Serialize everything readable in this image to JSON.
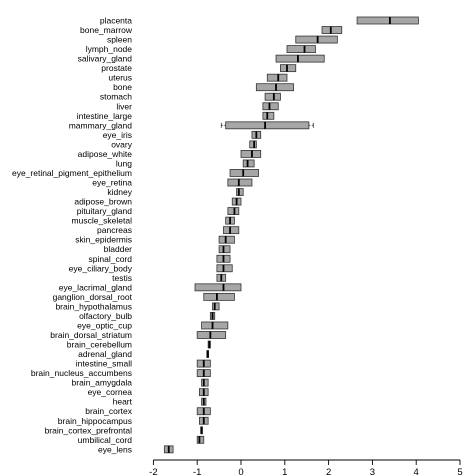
{
  "chart_data": {
    "type": "boxplot",
    "title": "",
    "xlabel": "",
    "ylabel": "",
    "xlim": [
      -2.1,
      5.0
    ],
    "xticks": [
      "-2",
      "-1",
      "0",
      "1",
      "2",
      "3",
      "4",
      "5"
    ],
    "grid": false,
    "legend": "none",
    "colors": {
      "box_fill": "#a6a6a6",
      "box_stroke": "#333333",
      "median": "#000000",
      "axis": "#000000"
    },
    "categories": [
      {
        "label": "placenta",
        "q1": 2.65,
        "median": 3.4,
        "q3": 4.05
      },
      {
        "label": "bone_marrow",
        "q1": 1.85,
        "median": 2.05,
        "q3": 2.3
      },
      {
        "label": "spleen",
        "q1": 1.25,
        "median": 1.75,
        "q3": 2.2
      },
      {
        "label": "lymph_node",
        "q1": 1.05,
        "median": 1.45,
        "q3": 1.7
      },
      {
        "label": "salivary_gland",
        "q1": 0.8,
        "median": 1.3,
        "q3": 1.9
      },
      {
        "label": "prostate",
        "q1": 0.9,
        "median": 1.05,
        "q3": 1.25
      },
      {
        "label": "uterus",
        "q1": 0.6,
        "median": 0.85,
        "q3": 1.05
      },
      {
        "label": "bone",
        "q1": 0.35,
        "median": 0.8,
        "q3": 1.2
      },
      {
        "label": "stomach",
        "q1": 0.55,
        "median": 0.75,
        "q3": 0.9
      },
      {
        "label": "liver",
        "q1": 0.5,
        "median": 0.65,
        "q3": 0.85
      },
      {
        "label": "intestine_large",
        "q1": 0.5,
        "median": 0.6,
        "q3": 0.75
      },
      {
        "label": "mammary_gland",
        "q1": -0.35,
        "median": 0.55,
        "q3": 1.55,
        "whisker_low": -0.45,
        "whisker_high": 1.65
      },
      {
        "label": "eye_iris",
        "q1": 0.25,
        "median": 0.35,
        "q3": 0.45
      },
      {
        "label": "ovary",
        "q1": 0.2,
        "median": 0.3,
        "q3": 0.35
      },
      {
        "label": "adipose_white",
        "q1": 0.0,
        "median": 0.25,
        "q3": 0.45
      },
      {
        "label": "lung",
        "q1": 0.05,
        "median": 0.15,
        "q3": 0.3
      },
      {
        "label": "eye_retinal_pigment_epithelium",
        "q1": -0.25,
        "median": 0.05,
        "q3": 0.4
      },
      {
        "label": "eye_retina",
        "q1": -0.3,
        "median": -0.05,
        "q3": 0.25
      },
      {
        "label": "kidney",
        "q1": -0.1,
        "median": -0.05,
        "q3": 0.05
      },
      {
        "label": "adipose_brown",
        "q1": -0.2,
        "median": -0.1,
        "q3": 0.0
      },
      {
        "label": "pituitary_gland",
        "q1": -0.3,
        "median": -0.15,
        "q3": -0.05
      },
      {
        "label": "muscle_skeletal",
        "q1": -0.35,
        "median": -0.25,
        "q3": -0.15
      },
      {
        "label": "pancreas",
        "q1": -0.4,
        "median": -0.25,
        "q3": -0.05
      },
      {
        "label": "skin_epidermis",
        "q1": -0.5,
        "median": -0.35,
        "q3": -0.15
      },
      {
        "label": "bladder",
        "q1": -0.5,
        "median": -0.4,
        "q3": -0.25
      },
      {
        "label": "spinal_cord",
        "q1": -0.55,
        "median": -0.4,
        "q3": -0.25
      },
      {
        "label": "eye_ciliary_body",
        "q1": -0.55,
        "median": -0.4,
        "q3": -0.2
      },
      {
        "label": "testis",
        "q1": -0.55,
        "median": -0.45,
        "q3": -0.35
      },
      {
        "label": "eye_lacrimal_gland",
        "q1": -1.05,
        "median": -0.4,
        "q3": 0.0
      },
      {
        "label": "ganglion_dorsal_root",
        "q1": -0.85,
        "median": -0.55,
        "q3": -0.15
      },
      {
        "label": "brain_hypothalamus",
        "q1": -0.65,
        "median": -0.6,
        "q3": -0.5
      },
      {
        "label": "olfactory_bulb",
        "q1": -0.7,
        "median": -0.65,
        "q3": -0.6
      },
      {
        "label": "eye_optic_cup",
        "q1": -0.9,
        "median": -0.65,
        "q3": -0.3
      },
      {
        "label": "brain_dorsal_striatum",
        "q1": -1.0,
        "median": -0.7,
        "q3": -0.35
      },
      {
        "label": "brain_cerebellum",
        "q1": -0.75,
        "median": -0.72,
        "q3": -0.7
      },
      {
        "label": "adrenal_gland",
        "q1": -0.78,
        "median": -0.76,
        "q3": -0.74
      },
      {
        "label": "intestine_small",
        "q1": -1.0,
        "median": -0.85,
        "q3": -0.7
      },
      {
        "label": "brain_nucleus_accumbens",
        "q1": -1.0,
        "median": -0.85,
        "q3": -0.7
      },
      {
        "label": "brain_amygdala",
        "q1": -0.9,
        "median": -0.85,
        "q3": -0.75
      },
      {
        "label": "eye_cornea",
        "q1": -0.95,
        "median": -0.85,
        "q3": -0.75
      },
      {
        "label": "heart",
        "q1": -0.9,
        "median": -0.85,
        "q3": -0.8
      },
      {
        "label": "brain_cortex",
        "q1": -1.0,
        "median": -0.85,
        "q3": -0.7
      },
      {
        "label": "brain_hippocampus",
        "q1": -0.95,
        "median": -0.85,
        "q3": -0.75
      },
      {
        "label": "brain_cortex_prefrontal",
        "q1": -0.92,
        "median": -0.9,
        "q3": -0.88
      },
      {
        "label": "umbilical_cord",
        "q1": -1.0,
        "median": -0.95,
        "q3": -0.85
      },
      {
        "label": "eye_lens",
        "q1": -1.75,
        "median": -1.65,
        "q3": -1.55
      }
    ]
  }
}
